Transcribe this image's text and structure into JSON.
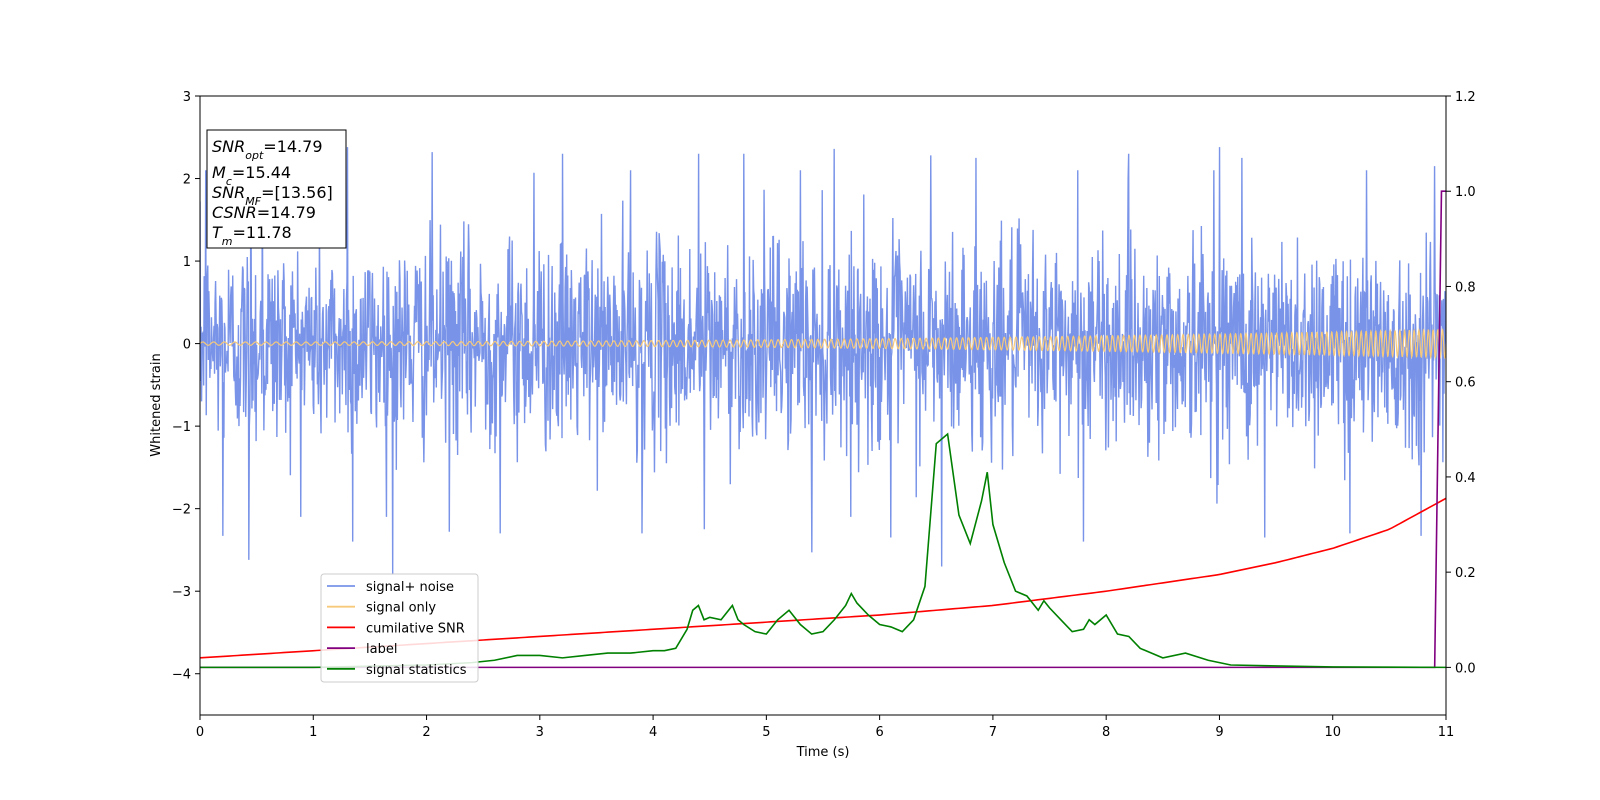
{
  "chart_data": {
    "type": "line",
    "xlabel": "Time (s)",
    "ylabel": "Whitened strain",
    "xlim": [
      0,
      11
    ],
    "ylim": [
      -4.5,
      3
    ],
    "ylim_right": [
      -0.1,
      1.2
    ],
    "x_ticks": [
      "0",
      "1",
      "2",
      "3",
      "4",
      "5",
      "6",
      "7",
      "8",
      "9",
      "10",
      "11"
    ],
    "y_ticks": [
      "−4",
      "−3",
      "−2",
      "−1",
      "0",
      "1",
      "2",
      "3"
    ],
    "y_ticks_right": [
      "0.0",
      "0.2",
      "0.4",
      "0.6",
      "0.8",
      "1.0",
      "1.2"
    ],
    "grid": false,
    "legend_position": "lower-left",
    "annotation": [
      {
        "base": "SNR",
        "sub": "opt",
        "value": "=14.79"
      },
      {
        "base": "M",
        "sub": "c",
        "value": "=15.44"
      },
      {
        "base": "SNR",
        "sub": "MF",
        "value": "=[13.56]"
      },
      {
        "base": "CSNR",
        "sub": "",
        "value": "=14.79"
      },
      {
        "base": "T",
        "sub": "m",
        "value": "=11.78"
      }
    ],
    "series": [
      {
        "name": "signal+ noise",
        "color": "#7893e8",
        "axis": "left",
        "noise_std": 0.62,
        "peaks_positive": [
          [
            0.05,
            2.1
          ],
          [
            0.45,
            2.25
          ],
          [
            0.55,
            2.05
          ],
          [
            1.3,
            2.38
          ],
          [
            2.05,
            2.32
          ],
          [
            2.95,
            2.07
          ],
          [
            3.2,
            2.3
          ],
          [
            3.8,
            2.1
          ],
          [
            4.4,
            2.3
          ],
          [
            4.8,
            2.3
          ],
          [
            5.3,
            2.1
          ],
          [
            5.6,
            2.36
          ],
          [
            6.45,
            2.28
          ],
          [
            6.85,
            2.25
          ],
          [
            7.75,
            2.1
          ],
          [
            8.2,
            2.3
          ],
          [
            8.95,
            2.1
          ],
          [
            9.0,
            2.38
          ],
          [
            9.2,
            2.25
          ],
          [
            10.3,
            2.1
          ],
          [
            10.9,
            2.15
          ]
        ],
        "peaks_negative": [
          [
            0.2,
            -2.33
          ],
          [
            0.43,
            -2.62
          ],
          [
            1.35,
            -2.4
          ],
          [
            1.7,
            -2.8
          ],
          [
            2.2,
            -2.28
          ],
          [
            2.65,
            -2.3
          ],
          [
            3.9,
            -2.3
          ],
          [
            4.45,
            -2.25
          ],
          [
            5.4,
            -2.53
          ],
          [
            6.1,
            -2.35
          ],
          [
            6.55,
            -2.7
          ],
          [
            7.8,
            -2.4
          ],
          [
            9.4,
            -2.35
          ],
          [
            10.15,
            -2.3
          ],
          [
            10.78,
            -2.33
          ]
        ]
      },
      {
        "name": "signal only",
        "color": "#f7c97a",
        "axis": "left",
        "amplitude_start": 0.02,
        "amplitude_end": 0.17,
        "cycles": 190
      },
      {
        "name": "cumilative SNR",
        "color": "#ff0000",
        "axis": "right",
        "x": [
          0,
          1,
          2,
          3,
          4,
          5,
          6,
          7,
          8,
          9,
          9.5,
          10,
          10.5,
          11
        ],
        "y": [
          0.02,
          0.035,
          0.05,
          0.065,
          0.08,
          0.095,
          0.11,
          0.13,
          0.16,
          0.195,
          0.22,
          0.25,
          0.29,
          0.355
        ]
      },
      {
        "name": "label",
        "color": "#800080",
        "axis": "right",
        "x": [
          0,
          10.9,
          10.96,
          11
        ],
        "y": [
          0.0,
          0.0,
          1.0,
          1.0
        ]
      },
      {
        "name": "signal statistics",
        "color": "#008000",
        "axis": "right",
        "x": [
          0,
          1,
          2,
          2.4,
          2.6,
          2.8,
          3.0,
          3.2,
          3.4,
          3.6,
          3.8,
          4.0,
          4.1,
          4.2,
          4.3,
          4.35,
          4.4,
          4.45,
          4.5,
          4.6,
          4.7,
          4.75,
          4.8,
          4.9,
          5.0,
          5.1,
          5.2,
          5.3,
          5.4,
          5.5,
          5.6,
          5.7,
          5.75,
          5.8,
          5.9,
          6.0,
          6.1,
          6.2,
          6.3,
          6.4,
          6.5,
          6.6,
          6.7,
          6.8,
          6.9,
          6.95,
          7.0,
          7.1,
          7.2,
          7.3,
          7.4,
          7.45,
          7.5,
          7.6,
          7.7,
          7.8,
          7.85,
          7.9,
          8.0,
          8.1,
          8.2,
          8.3,
          8.5,
          8.7,
          8.9,
          9.1,
          9.5,
          10,
          11
        ],
        "y": [
          0.0,
          0.0,
          0.005,
          0.01,
          0.015,
          0.025,
          0.025,
          0.02,
          0.025,
          0.03,
          0.03,
          0.035,
          0.035,
          0.04,
          0.08,
          0.12,
          0.13,
          0.1,
          0.105,
          0.1,
          0.13,
          0.1,
          0.09,
          0.075,
          0.07,
          0.1,
          0.12,
          0.09,
          0.07,
          0.075,
          0.1,
          0.13,
          0.155,
          0.135,
          0.11,
          0.09,
          0.085,
          0.075,
          0.1,
          0.17,
          0.47,
          0.49,
          0.32,
          0.26,
          0.35,
          0.41,
          0.3,
          0.22,
          0.16,
          0.15,
          0.12,
          0.14,
          0.125,
          0.1,
          0.075,
          0.08,
          0.1,
          0.09,
          0.11,
          0.07,
          0.065,
          0.04,
          0.02,
          0.03,
          0.015,
          0.005,
          0.003,
          0.001,
          0.0
        ]
      }
    ]
  }
}
